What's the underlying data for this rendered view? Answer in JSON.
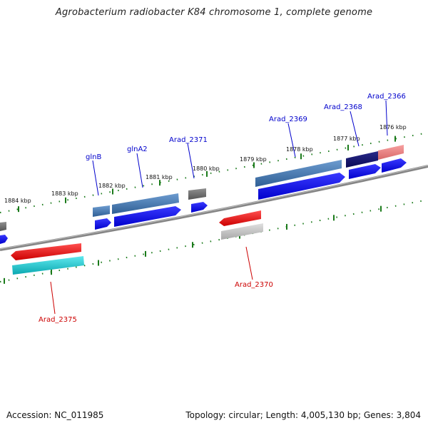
{
  "title": "Agrobacterium radiobacter K84 chromosome 1, complete genome",
  "footer": {
    "accession": "Accession: NC_011985",
    "summary": "Topology: circular; Length: 4,005,130 bp; Genes: 3,804"
  },
  "ticks": [
    "1876 kbp",
    "1877 kbp",
    "1878 kbp",
    "1879 kbp",
    "1880 kbp",
    "1881 kbp",
    "1882 kbp",
    "1883 kbp",
    "1884 kbp"
  ],
  "gene_labels": {
    "top": [
      "Arad_2366",
      "Arad_2368",
      "Arad_2369",
      "Arad_2371",
      "glnA2",
      "glnB"
    ],
    "bottom": [
      "Arad_2370",
      "Arad_2375"
    ]
  },
  "colors": {
    "top_label": "#0000cc",
    "bottom_label": "#cc0000",
    "tick": "#1a7a1a",
    "backbone": "#888888"
  }
}
